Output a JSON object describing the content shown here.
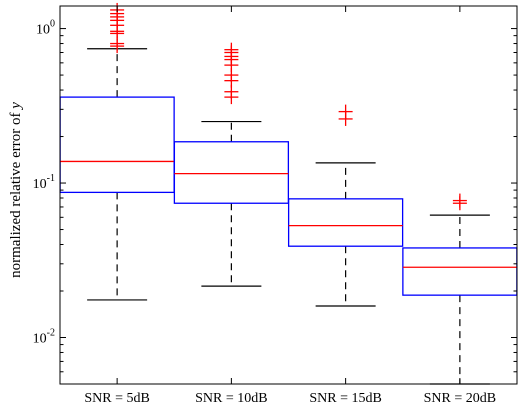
{
  "chart_data": {
    "type": "box",
    "ylabel_prefix": "normalized relative error of ",
    "ylabel_var": "y",
    "yscale": "log",
    "ylim": [
      0.005,
      1.4
    ],
    "y_ticks": [
      {
        "value": 1,
        "base": "10",
        "exp": "0"
      },
      {
        "value": 0.1,
        "base": "10",
        "exp": "-1"
      },
      {
        "value": 0.01,
        "base": "10",
        "exp": "-2"
      }
    ],
    "categories": [
      "SNR = 5dB",
      "SNR = 10dB",
      "SNR = 15dB",
      "SNR = 20dB"
    ],
    "boxes": [
      {
        "whisker_low": 0.0175,
        "q1": 0.087,
        "median": 0.138,
        "q3": 0.36,
        "whisker_high": 0.74,
        "outliers": [
          0.77,
          0.8,
          0.93,
          0.96,
          1.05,
          1.13,
          1.19,
          1.25,
          1.32
        ]
      },
      {
        "whisker_low": 0.0215,
        "q1": 0.074,
        "median": 0.115,
        "q3": 0.185,
        "whisker_high": 0.25,
        "outliers": [
          0.36,
          0.39,
          0.46,
          0.5,
          0.58,
          0.63,
          0.66,
          0.7,
          0.73
        ]
      },
      {
        "whisker_low": 0.016,
        "q1": 0.039,
        "median": 0.053,
        "q3": 0.079,
        "whisker_high": 0.135,
        "outliers": [
          0.26,
          0.29
        ]
      },
      {
        "whisker_low": 0.005,
        "q1": 0.0188,
        "median": 0.0285,
        "q3": 0.038,
        "whisker_high": 0.062,
        "outliers": [
          0.074,
          0.077
        ]
      }
    ],
    "colors": {
      "box": "#0000ff",
      "median": "#ff0000",
      "outlier": "#ff0000",
      "whisker": "#000000"
    }
  }
}
